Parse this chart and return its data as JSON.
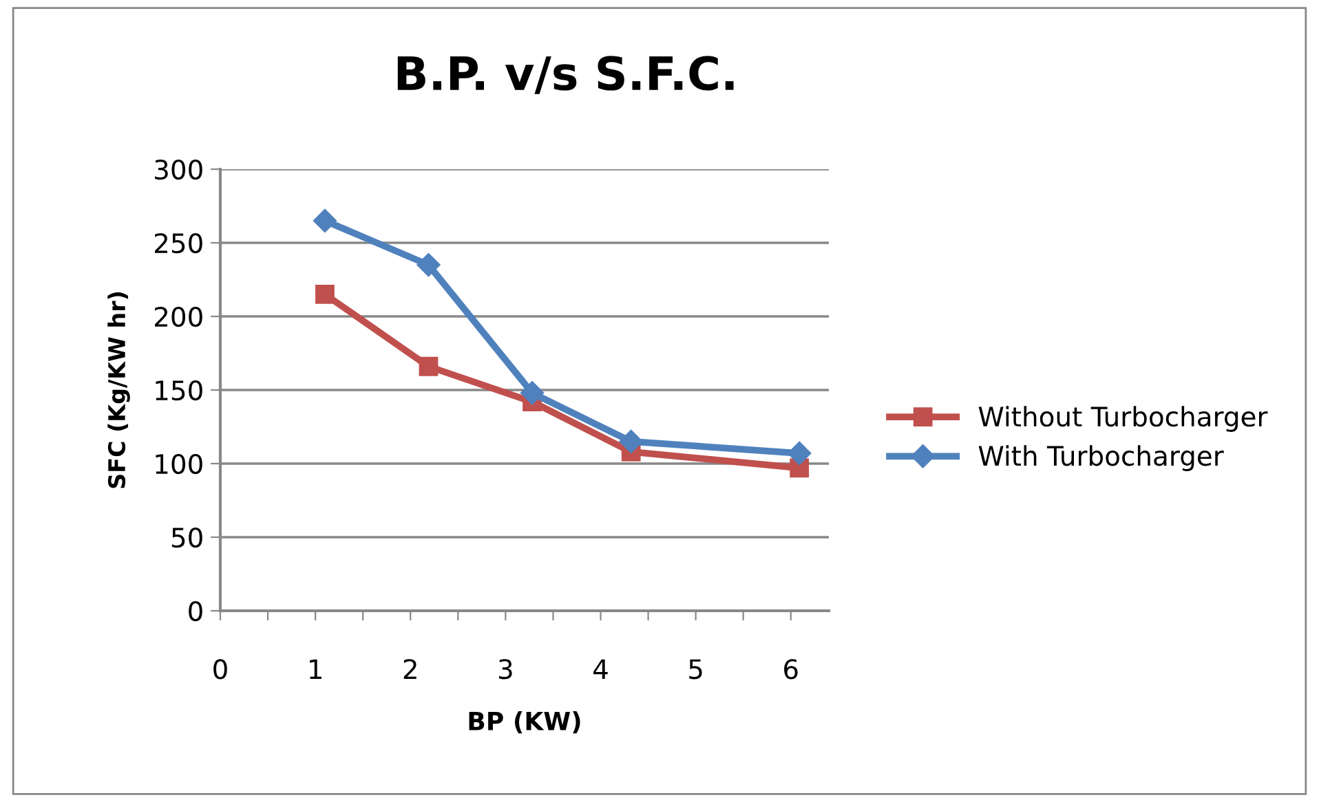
{
  "chart_data": {
    "type": "line",
    "title": "B.P. v/s S.F.C.",
    "xlabel": "BP (KW)",
    "ylabel": "SFC (Kg/KW hr)",
    "xlim": [
      0,
      6.4
    ],
    "xticks": [
      0,
      1,
      2,
      3,
      4,
      5,
      6,
      {
        "value": 0.5,
        "label": null
      },
      {
        "value": 1.5,
        "label": null
      },
      {
        "value": 2.5,
        "label": null
      },
      {
        "value": 3.5,
        "label": null
      },
      {
        "value": 4.5,
        "label": null
      },
      {
        "value": 5.5,
        "label": null
      }
    ],
    "ylim": [
      0,
      300
    ],
    "yticks": [
      0,
      50,
      100,
      150,
      200,
      250,
      300
    ],
    "grid": "y",
    "legend": "right",
    "series": [
      {
        "name": "Without Turbocharger",
        "color": "#c0504d",
        "marker": "square",
        "x": [
          1.1,
          2.19,
          3.28,
          4.32,
          6.09
        ],
        "values": [
          215,
          166,
          142,
          108,
          97
        ]
      },
      {
        "name": "With Turbocharger",
        "color": "#4f81bd",
        "marker": "diamond",
        "x": [
          1.1,
          2.19,
          3.28,
          4.32,
          6.09
        ],
        "values": [
          265,
          235,
          148,
          115,
          107
        ]
      }
    ]
  }
}
